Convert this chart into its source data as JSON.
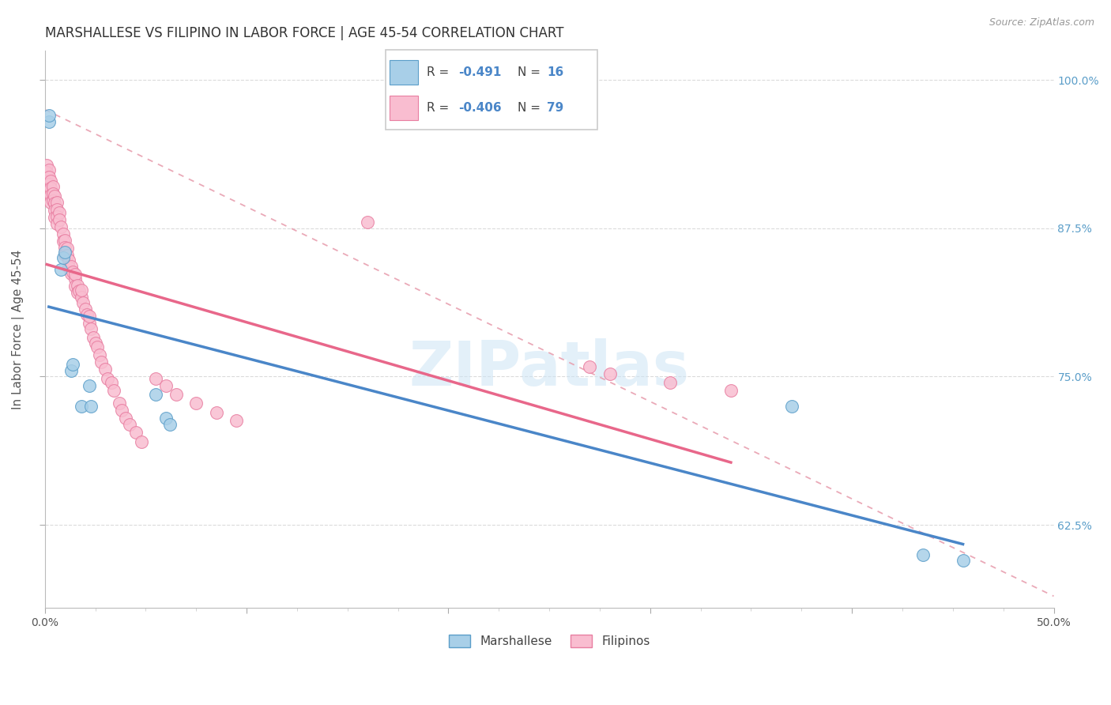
{
  "title": "MARSHALLESE VS FILIPINO IN LABOR FORCE | AGE 45-54 CORRELATION CHART",
  "source": "Source: ZipAtlas.com",
  "xlim": [
    0.0,
    0.5
  ],
  "ylim": [
    0.555,
    1.025
  ],
  "watermark": "ZIPatlas",
  "legend_r_blue": "-0.491",
  "legend_n_blue": "16",
  "legend_r_pink": "-0.406",
  "legend_n_pink": "79",
  "marshallese_color": "#a8cfe8",
  "filipino_color": "#f9bdd0",
  "marshallese_edge": "#5b9ec9",
  "filipino_edge": "#e87ea1",
  "blue_line_color": "#4a86c8",
  "pink_line_color": "#e8678a",
  "diag_line_color": "#e8a0b0",
  "marshallese_x": [
    0.002,
    0.002,
    0.008,
    0.009,
    0.01,
    0.013,
    0.014,
    0.018,
    0.022,
    0.023,
    0.055,
    0.06,
    0.062,
    0.37,
    0.435,
    0.455
  ],
  "marshallese_y": [
    0.965,
    0.97,
    0.84,
    0.85,
    0.855,
    0.755,
    0.76,
    0.725,
    0.742,
    0.725,
    0.735,
    0.715,
    0.71,
    0.725,
    0.6,
    0.595
  ],
  "filipino_x": [
    0.001,
    0.001,
    0.001,
    0.001,
    0.001,
    0.002,
    0.002,
    0.002,
    0.002,
    0.003,
    0.003,
    0.003,
    0.003,
    0.004,
    0.004,
    0.004,
    0.005,
    0.005,
    0.005,
    0.005,
    0.006,
    0.006,
    0.006,
    0.006,
    0.007,
    0.007,
    0.008,
    0.009,
    0.009,
    0.01,
    0.01,
    0.01,
    0.011,
    0.011,
    0.012,
    0.012,
    0.013,
    0.013,
    0.014,
    0.015,
    0.015,
    0.015,
    0.016,
    0.016,
    0.017,
    0.018,
    0.018,
    0.019,
    0.02,
    0.021,
    0.022,
    0.022,
    0.023,
    0.024,
    0.025,
    0.026,
    0.027,
    0.028,
    0.03,
    0.031,
    0.033,
    0.034,
    0.037,
    0.038,
    0.04,
    0.042,
    0.045,
    0.048,
    0.055,
    0.06,
    0.065,
    0.075,
    0.085,
    0.095,
    0.16,
    0.27,
    0.28,
    0.31,
    0.34
  ],
  "filipino_y": [
    0.928,
    0.922,
    0.918,
    0.912,
    0.906,
    0.924,
    0.918,
    0.912,
    0.906,
    0.915,
    0.909,
    0.903,
    0.897,
    0.91,
    0.904,
    0.898,
    0.902,
    0.896,
    0.89,
    0.884,
    0.897,
    0.891,
    0.885,
    0.879,
    0.888,
    0.882,
    0.876,
    0.87,
    0.864,
    0.865,
    0.859,
    0.853,
    0.858,
    0.852,
    0.848,
    0.842,
    0.843,
    0.837,
    0.838,
    0.832,
    0.826,
    0.836,
    0.827,
    0.821,
    0.822,
    0.817,
    0.823,
    0.812,
    0.807,
    0.802,
    0.795,
    0.801,
    0.79,
    0.783,
    0.778,
    0.775,
    0.768,
    0.762,
    0.756,
    0.748,
    0.745,
    0.738,
    0.728,
    0.722,
    0.715,
    0.71,
    0.703,
    0.695,
    0.748,
    0.742,
    0.735,
    0.728,
    0.72,
    0.713,
    0.88,
    0.758,
    0.752,
    0.745,
    0.738
  ],
  "ylabel": "In Labor Force | Age 45-54",
  "axis_label_fontsize": 11,
  "title_fontsize": 12,
  "ytick_vals": [
    0.625,
    0.75,
    0.875,
    1.0
  ],
  "ytick_labels": [
    "62.5%",
    "75.0%",
    "87.5%",
    "100.0%"
  ]
}
